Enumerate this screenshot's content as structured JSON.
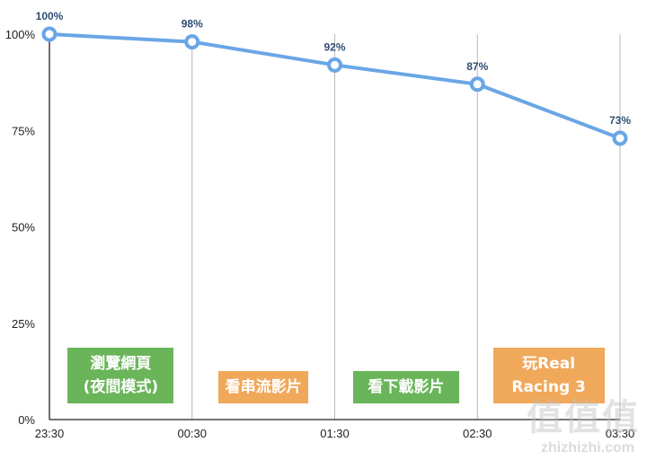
{
  "chart_data": {
    "type": "line",
    "x": [
      "23:30",
      "00:30",
      "01:30",
      "02:30",
      "03:30"
    ],
    "series": [
      {
        "values": [
          100,
          98,
          92,
          87,
          73
        ],
        "labels": [
          "100%",
          "98%",
          "92%",
          "87%",
          "73%"
        ],
        "color": "#6aa6e6"
      }
    ],
    "ylim": [
      0,
      100
    ],
    "yticks": [
      0,
      25,
      50,
      75,
      100
    ],
    "ytick_labels": [
      "0%",
      "25%",
      "50%",
      "75%",
      "100%"
    ],
    "grid": "vertical",
    "annotations": [
      {
        "text": "瀏覽網頁\n(夜間模式)",
        "color": "#6ab55a",
        "x_from": "23:30",
        "x_to": "00:30"
      },
      {
        "text": "看串流影片",
        "color": "#f0a85a",
        "x_from": "00:30",
        "x_to": "01:30"
      },
      {
        "text": "看下載影片",
        "color": "#6ab55a",
        "x_from": "01:30",
        "x_to": "02:30"
      },
      {
        "text": "玩Real\nRacing 3",
        "color": "#f0a85a",
        "x_from": "02:30",
        "x_to": "03:30"
      }
    ]
  },
  "watermark": {
    "logo": "值值值",
    "url": "zhizhizhi.com"
  }
}
